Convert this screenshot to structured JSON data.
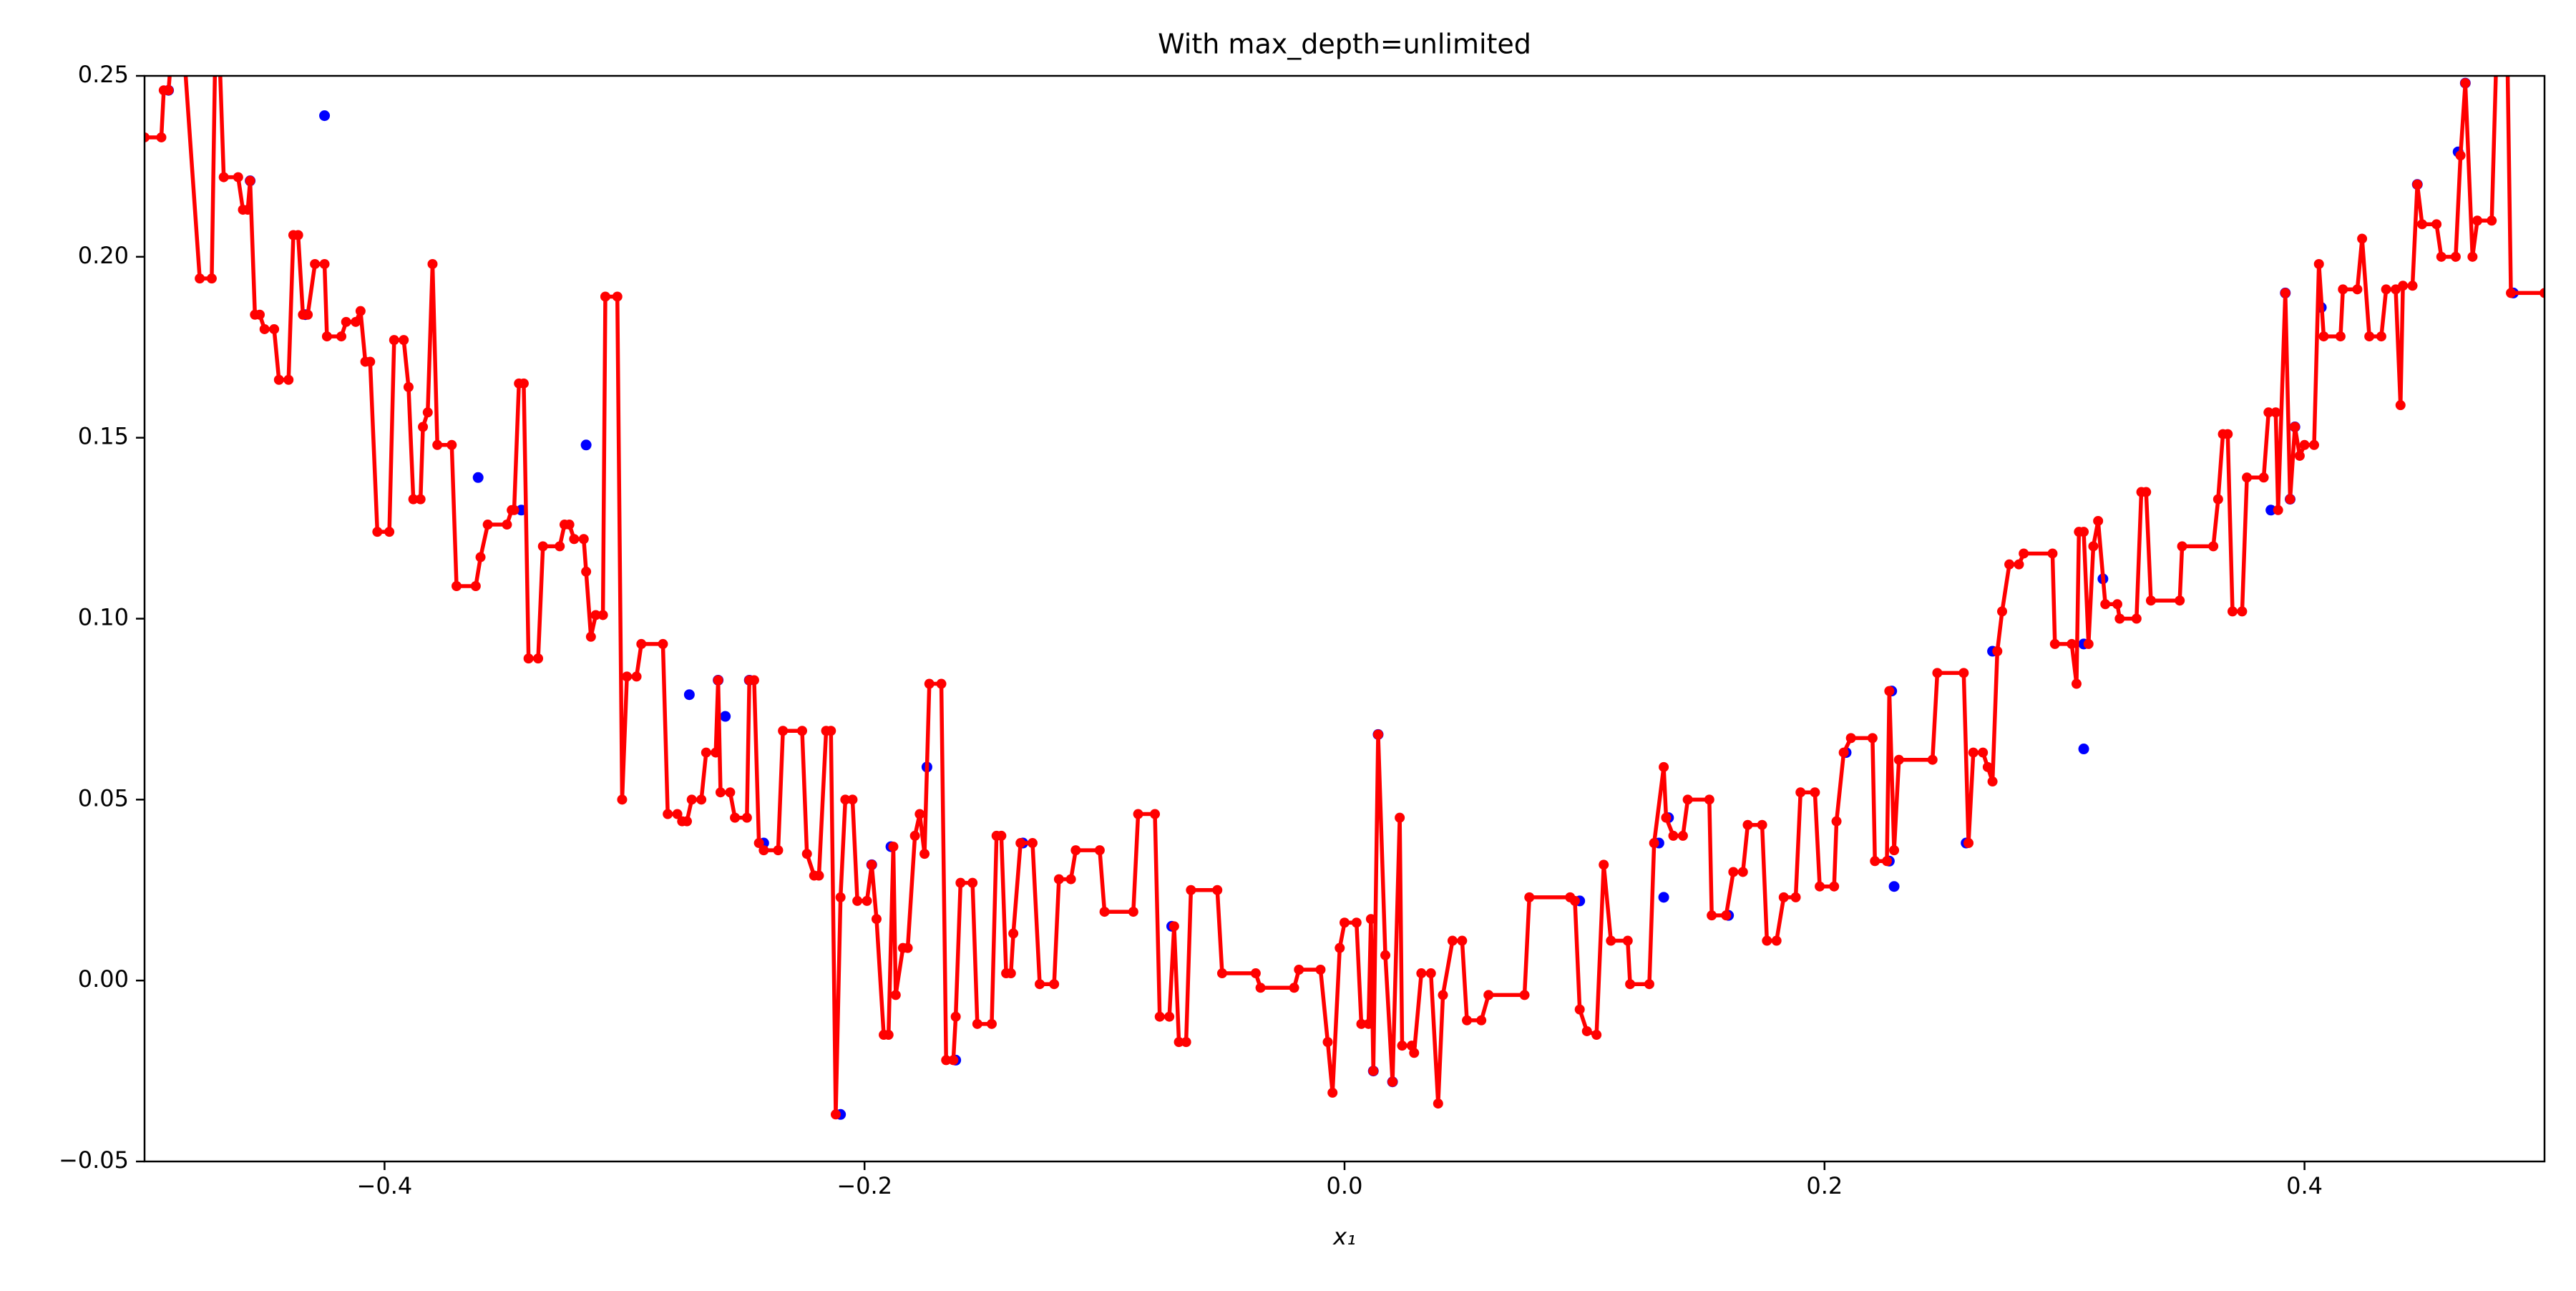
{
  "chart_data": {
    "type": "line",
    "title": "With max_depth=unlimited",
    "xlabel": "x₁",
    "xlim": [
      -0.5,
      0.5
    ],
    "ylim": [
      -0.05,
      0.25
    ],
    "xticks": [
      {
        "value": -0.4,
        "label": "−0.4"
      },
      {
        "value": -0.2,
        "label": "−0.2"
      },
      {
        "value": 0,
        "label": "0.0"
      },
      0.2,
      0.4
    ],
    "yticks": [
      {
        "value": -0.05,
        "label": "−0.05"
      },
      {
        "value": 0,
        "label": "0.00"
      },
      0.05,
      {
        "value": 0.1,
        "label": "0.10"
      },
      0.15,
      {
        "value": 0.2,
        "label": "0.20"
      },
      0.25
    ],
    "grid": false,
    "series": [
      {
        "type": "scatter",
        "color": "#0000ff",
        "x": [
          -0.49,
          -0.456,
          -0.425,
          -0.433,
          -0.361,
          -0.343,
          -0.316,
          -0.273,
          -0.261,
          -0.258,
          -0.248,
          -0.242,
          -0.21,
          -0.197,
          -0.189,
          -0.174,
          -0.162,
          -0.134,
          -0.072,
          0.012,
          0.014,
          0.02,
          0.098,
          0.131,
          0.133,
          0.135,
          0.16,
          0.209,
          0.227,
          0.228,
          0.229,
          0.259,
          0.27,
          0.308,
          0.308,
          0.316,
          0.386,
          0.392,
          0.394,
          0.396,
          0.407,
          0.447,
          0.464,
          0.467,
          0.487
        ],
        "values": [
          0.246,
          0.221,
          0.239,
          0.184,
          0.139,
          0.13,
          0.148,
          0.079,
          0.083,
          0.073,
          0.083,
          0.038,
          -0.037,
          0.032,
          0.037,
          0.059,
          -0.022,
          0.038,
          0.015,
          -0.025,
          0.068,
          -0.028,
          0.022,
          0.038,
          0.023,
          0.045,
          0.018,
          0.063,
          0.033,
          0.08,
          0.026,
          0.038,
          0.091,
          0.064,
          0.093,
          0.111,
          0.13,
          0.19,
          0.133,
          0.153,
          0.186,
          0.22,
          0.229,
          0.248,
          0.19
        ]
      },
      {
        "type": "line",
        "color": "#ff0000",
        "marker": true,
        "x": [
          -0.5,
          -0.493,
          -0.492,
          -0.49,
          -0.486,
          -0.477,
          -0.472,
          -0.47,
          -0.467,
          -0.461,
          -0.459,
          -0.457,
          -0.456,
          -0.454,
          -0.452,
          -0.45,
          -0.446,
          -0.444,
          -0.44,
          -0.438,
          -0.436,
          -0.434,
          -0.432,
          -0.429,
          -0.425,
          -0.424,
          -0.418,
          -0.416,
          -0.412,
          -0.41,
          -0.408,
          -0.406,
          -0.403,
          -0.398,
          -0.396,
          -0.392,
          -0.39,
          -0.388,
          -0.385,
          -0.384,
          -0.382,
          -0.38,
          -0.378,
          -0.372,
          -0.37,
          -0.362,
          -0.36,
          -0.357,
          -0.349,
          -0.347,
          -0.346,
          -0.344,
          -0.342,
          -0.34,
          -0.336,
          -0.334,
          -0.327,
          -0.325,
          -0.323,
          -0.321,
          -0.317,
          -0.316,
          -0.314,
          -0.312,
          -0.309,
          -0.308,
          -0.303,
          -0.301,
          -0.299,
          -0.295,
          -0.293,
          -0.284,
          -0.282,
          -0.278,
          -0.276,
          -0.274,
          -0.272,
          -0.268,
          -0.266,
          -0.262,
          -0.261,
          -0.26,
          -0.256,
          -0.254,
          -0.249,
          -0.248,
          -0.246,
          -0.244,
          -0.242,
          -0.236,
          -0.234,
          -0.226,
          -0.224,
          -0.221,
          -0.219,
          -0.216,
          -0.214,
          -0.212,
          -0.21,
          -0.208,
          -0.205,
          -0.203,
          -0.199,
          -0.197,
          -0.195,
          -0.192,
          -0.19,
          -0.188,
          -0.187,
          -0.184,
          -0.182,
          -0.179,
          -0.177,
          -0.175,
          -0.173,
          -0.168,
          -0.166,
          -0.163,
          -0.162,
          -0.16,
          -0.155,
          -0.153,
          -0.147,
          -0.145,
          -0.143,
          -0.141,
          -0.139,
          -0.138,
          -0.135,
          -0.13,
          -0.127,
          -0.121,
          -0.119,
          -0.114,
          -0.112,
          -0.102,
          -0.1,
          -0.088,
          -0.086,
          -0.079,
          -0.077,
          -0.073,
          -0.071,
          -0.069,
          -0.066,
          -0.064,
          -0.053,
          -0.051,
          -0.037,
          -0.035,
          -0.021,
          -0.019,
          -0.01,
          -0.007,
          -0.005,
          -0.002,
          0,
          0.005,
          0.007,
          0.01,
          0.011,
          0.012,
          0.014,
          0.017,
          0.02,
          0.023,
          0.024,
          0.028,
          0.029,
          0.032,
          0.036,
          0.039,
          0.041,
          0.045,
          0.049,
          0.051,
          0.057,
          0.06,
          0.075,
          0.077,
          0.094,
          0.096,
          0.098,
          0.101,
          0.105,
          0.108,
          0.111,
          0.118,
          0.119,
          0.127,
          0.129,
          0.133,
          0.134,
          0.137,
          0.141,
          0.143,
          0.152,
          0.153,
          0.159,
          0.162,
          0.166,
          0.168,
          0.174,
          0.176,
          0.18,
          0.183,
          0.188,
          0.19,
          0.196,
          0.198,
          0.204,
          0.205,
          0.208,
          0.211,
          0.22,
          0.221,
          0.226,
          0.227,
          0.229,
          0.231,
          0.245,
          0.247,
          0.258,
          0.26,
          0.262,
          0.266,
          0.268,
          0.27,
          0.272,
          0.274,
          0.277,
          0.281,
          0.283,
          0.295,
          0.296,
          0.303,
          0.305,
          0.306,
          0.308,
          0.31,
          0.312,
          0.314,
          0.317,
          0.322,
          0.323,
          0.33,
          0.332,
          0.334,
          0.336,
          0.348,
          0.349,
          0.362,
          0.364,
          0.366,
          0.368,
          0.37,
          0.374,
          0.376,
          0.383,
          0.385,
          0.388,
          0.389,
          0.392,
          0.394,
          0.396,
          0.398,
          0.4,
          0.404,
          0.406,
          0.408,
          0.415,
          0.416,
          0.422,
          0.424,
          0.427,
          0.432,
          0.434,
          0.438,
          0.44,
          0.441,
          0.445,
          0.447,
          0.449,
          0.455,
          0.457,
          0.463,
          0.465,
          0.467,
          0.47,
          0.472,
          0.478,
          0.481,
          0.484,
          0.486,
          0.5
        ],
        "values": [
          0.233,
          0.233,
          0.246,
          0.246,
          0.28,
          0.194,
          0.194,
          0.28,
          0.222,
          0.222,
          0.213,
          0.213,
          0.221,
          0.184,
          0.184,
          0.18,
          0.18,
          0.166,
          0.166,
          0.206,
          0.206,
          0.184,
          0.184,
          0.198,
          0.198,
          0.178,
          0.178,
          0.182,
          0.182,
          0.185,
          0.171,
          0.171,
          0.124,
          0.124,
          0.177,
          0.177,
          0.164,
          0.133,
          0.133,
          0.153,
          0.157,
          0.198,
          0.148,
          0.148,
          0.109,
          0.109,
          0.117,
          0.126,
          0.126,
          0.13,
          0.13,
          0.165,
          0.165,
          0.089,
          0.089,
          0.12,
          0.12,
          0.126,
          0.126,
          0.122,
          0.122,
          0.113,
          0.095,
          0.101,
          0.101,
          0.189,
          0.189,
          0.05,
          0.084,
          0.084,
          0.093,
          0.093,
          0.046,
          0.046,
          0.044,
          0.044,
          0.05,
          0.05,
          0.063,
          0.063,
          0.083,
          0.052,
          0.052,
          0.045,
          0.045,
          0.083,
          0.083,
          0.038,
          0.036,
          0.036,
          0.069,
          0.069,
          0.035,
          0.029,
          0.029,
          0.069,
          0.069,
          -0.037,
          0.023,
          0.05,
          0.05,
          0.022,
          0.022,
          0.032,
          0.017,
          -0.015,
          -0.015,
          0.037,
          -0.004,
          0.009,
          0.009,
          0.04,
          0.046,
          0.035,
          0.082,
          0.082,
          -0.022,
          -0.022,
          -0.01,
          0.027,
          0.027,
          -0.012,
          -0.012,
          0.04,
          0.04,
          0.002,
          0.002,
          0.013,
          0.038,
          0.038,
          -0.001,
          -0.001,
          0.028,
          0.028,
          0.036,
          0.036,
          0.019,
          0.019,
          0.046,
          0.046,
          -0.01,
          -0.01,
          0.015,
          -0.017,
          -0.017,
          0.025,
          0.025,
          0.002,
          0.002,
          -0.002,
          -0.002,
          0.003,
          0.003,
          -0.017,
          -0.031,
          0.009,
          0.016,
          0.016,
          -0.012,
          -0.012,
          0.017,
          -0.025,
          0.068,
          0.007,
          -0.028,
          0.045,
          -0.018,
          -0.018,
          -0.02,
          0.002,
          0.002,
          -0.034,
          -0.004,
          0.011,
          0.011,
          -0.011,
          -0.011,
          -0.004,
          -0.004,
          0.023,
          0.023,
          0.022,
          -0.008,
          -0.014,
          -0.015,
          0.032,
          0.011,
          0.011,
          -0.001,
          -0.001,
          0.038,
          0.059,
          0.045,
          0.04,
          0.04,
          0.05,
          0.05,
          0.018,
          0.018,
          0.03,
          0.03,
          0.043,
          0.043,
          0.011,
          0.011,
          0.023,
          0.023,
          0.052,
          0.052,
          0.026,
          0.026,
          0.044,
          0.063,
          0.067,
          0.067,
          0.033,
          0.033,
          0.08,
          0.036,
          0.061,
          0.061,
          0.085,
          0.085,
          0.038,
          0.063,
          0.063,
          0.059,
          0.055,
          0.091,
          0.102,
          0.115,
          0.115,
          0.118,
          0.118,
          0.093,
          0.093,
          0.082,
          0.124,
          0.124,
          0.093,
          0.12,
          0.127,
          0.104,
          0.104,
          0.1,
          0.1,
          0.135,
          0.135,
          0.105,
          0.105,
          0.12,
          0.12,
          0.133,
          0.151,
          0.151,
          0.102,
          0.102,
          0.139,
          0.139,
          0.157,
          0.157,
          0.13,
          0.19,
          0.133,
          0.153,
          0.145,
          0.148,
          0.148,
          0.198,
          0.178,
          0.178,
          0.191,
          0.191,
          0.205,
          0.178,
          0.178,
          0.191,
          0.191,
          0.159,
          0.192,
          0.192,
          0.22,
          0.209,
          0.209,
          0.2,
          0.2,
          0.228,
          0.248,
          0.2,
          0.21,
          0.21,
          0.28,
          0.28,
          0.19,
          0.19
        ]
      }
    ]
  }
}
